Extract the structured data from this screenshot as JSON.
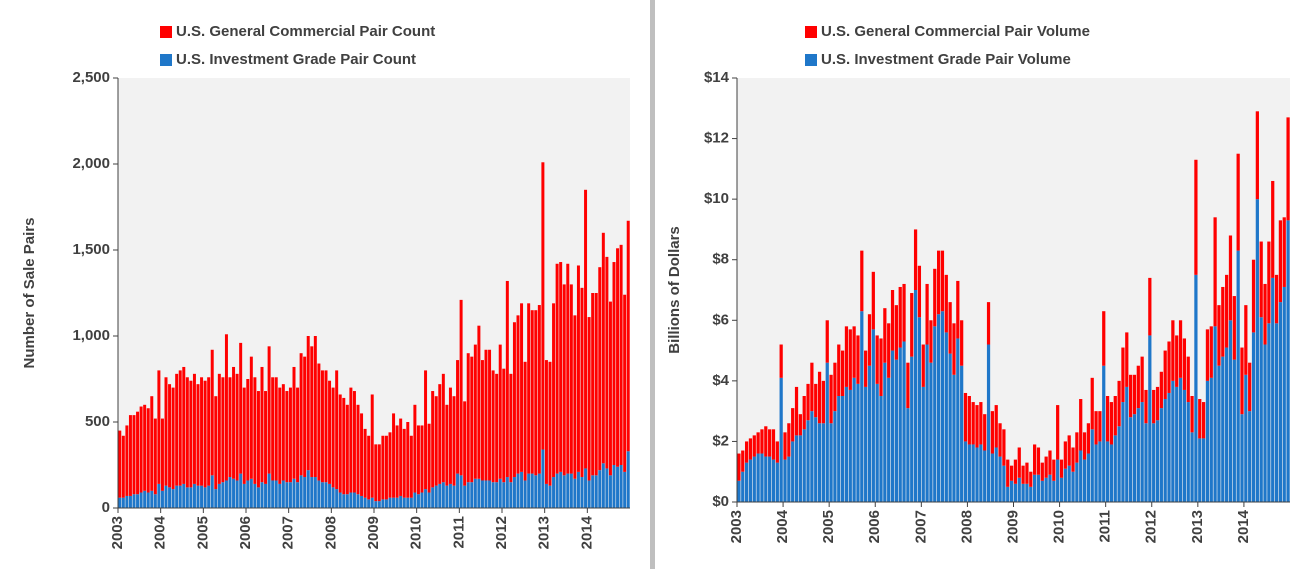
{
  "chart_data": [
    {
      "type": "bar",
      "stacked": true,
      "y_label": "Number of Sale Pairs",
      "categories": [
        "2003",
        null,
        null,
        null,
        null,
        null,
        null,
        null,
        null,
        null,
        null,
        null,
        "2004",
        null,
        null,
        null,
        null,
        null,
        null,
        null,
        null,
        null,
        null,
        null,
        "2005",
        null,
        null,
        null,
        null,
        null,
        null,
        null,
        null,
        null,
        null,
        null,
        "2006",
        null,
        null,
        null,
        null,
        null,
        null,
        null,
        null,
        null,
        null,
        null,
        "2007",
        null,
        null,
        null,
        null,
        null,
        null,
        null,
        null,
        null,
        null,
        null,
        "2008",
        null,
        null,
        null,
        null,
        null,
        null,
        null,
        null,
        null,
        null,
        null,
        "2009",
        null,
        null,
        null,
        null,
        null,
        null,
        null,
        null,
        null,
        null,
        null,
        "2010",
        null,
        null,
        null,
        null,
        null,
        null,
        null,
        null,
        null,
        null,
        null,
        "2011",
        null,
        null,
        null,
        null,
        null,
        null,
        null,
        null,
        null,
        null,
        null,
        "2012",
        null,
        null,
        null,
        null,
        null,
        null,
        null,
        null,
        null,
        null,
        null,
        "2013",
        null,
        null,
        null,
        null,
        null,
        null,
        null,
        null,
        null,
        null,
        null,
        "2014",
        null,
        null,
        null,
        null,
        null,
        null,
        null,
        null,
        null,
        null,
        null
      ],
      "series": [
        {
          "name": "U.S. General Commercial Pair Count",
          "color": "#ff0000",
          "values": [
            390,
            360,
            410,
            470,
            460,
            480,
            500,
            500,
            490,
            550,
            440,
            660,
            420,
            630,
            600,
            590,
            650,
            670,
            680,
            640,
            620,
            640,
            590,
            630,
            620,
            630,
            730,
            540,
            640,
            610,
            850,
            580,
            650,
            620,
            760,
            560,
            590,
            710,
            620,
            560,
            670,
            540,
            740,
            600,
            600,
            560,
            560,
            530,
            550,
            650,
            550,
            710,
            700,
            780,
            760,
            820,
            680,
            650,
            650,
            600,
            580,
            690,
            570,
            560,
            520,
            610,
            590,
            520,
            480,
            400,
            370,
            600,
            330,
            330,
            370,
            370,
            380,
            490,
            420,
            450,
            400,
            440,
            360,
            510,
            400,
            390,
            690,
            400,
            560,
            520,
            580,
            630,
            470,
            560,
            520,
            660,
            1020,
            490,
            750,
            730,
            780,
            890,
            700,
            760,
            760,
            650,
            630,
            780,
            660,
            1140,
            630,
            900,
            920,
            980,
            690,
            990,
            950,
            960,
            980,
            1670,
            720,
            720,
            1010,
            1220,
            1220,
            1110,
            1220,
            1100,
            950,
            1200,
            1100,
            1620,
            950,
            1060,
            1060,
            1180,
            1340,
            1230,
            1010,
            1180,
            1270,
            1280,
            1030,
            1340
          ]
        },
        {
          "name": "U.S. Investment Grade Pair Count",
          "color": "#1f77c9",
          "values": [
            60,
            60,
            70,
            70,
            80,
            80,
            90,
            100,
            90,
            100,
            80,
            140,
            100,
            130,
            120,
            110,
            130,
            130,
            140,
            120,
            120,
            140,
            130,
            130,
            120,
            130,
            190,
            110,
            140,
            150,
            160,
            180,
            170,
            160,
            200,
            140,
            160,
            170,
            140,
            120,
            150,
            140,
            200,
            160,
            160,
            140,
            160,
            150,
            150,
            170,
            150,
            190,
            180,
            220,
            180,
            180,
            160,
            150,
            150,
            140,
            120,
            110,
            90,
            80,
            80,
            90,
            90,
            80,
            70,
            60,
            50,
            60,
            40,
            40,
            50,
            50,
            60,
            60,
            60,
            70,
            60,
            60,
            60,
            90,
            80,
            90,
            110,
            90,
            120,
            130,
            140,
            150,
            130,
            140,
            130,
            200,
            190,
            130,
            150,
            150,
            170,
            170,
            160,
            160,
            160,
            150,
            150,
            170,
            150,
            180,
            150,
            180,
            200,
            210,
            160,
            200,
            200,
            190,
            200,
            340,
            140,
            130,
            180,
            200,
            210,
            190,
            200,
            200,
            170,
            210,
            180,
            230,
            160,
            190,
            190,
            220,
            260,
            230,
            190,
            250,
            240,
            250,
            210,
            330
          ]
        }
      ],
      "ylim": [
        0,
        2500
      ],
      "yticks": [
        0,
        500,
        {
          "value": 1000,
          "label": "1,000"
        },
        {
          "value": 1500,
          "label": "1,500"
        },
        {
          "value": 2000,
          "label": "2,000"
        },
        {
          "value": 2500,
          "label": "2,500"
        }
      ]
    },
    {
      "type": "bar",
      "stacked": true,
      "y_label": "Billions of Dollars",
      "categories": [
        "2003",
        null,
        null,
        null,
        null,
        null,
        null,
        null,
        null,
        null,
        null,
        null,
        "2004",
        null,
        null,
        null,
        null,
        null,
        null,
        null,
        null,
        null,
        null,
        null,
        "2005",
        null,
        null,
        null,
        null,
        null,
        null,
        null,
        null,
        null,
        null,
        null,
        "2006",
        null,
        null,
        null,
        null,
        null,
        null,
        null,
        null,
        null,
        null,
        null,
        "2007",
        null,
        null,
        null,
        null,
        null,
        null,
        null,
        null,
        null,
        null,
        null,
        "2008",
        null,
        null,
        null,
        null,
        null,
        null,
        null,
        null,
        null,
        null,
        null,
        "2009",
        null,
        null,
        null,
        null,
        null,
        null,
        null,
        null,
        null,
        null,
        null,
        "2010",
        null,
        null,
        null,
        null,
        null,
        null,
        null,
        null,
        null,
        null,
        null,
        "2011",
        null,
        null,
        null,
        null,
        null,
        null,
        null,
        null,
        null,
        null,
        null,
        "2012",
        null,
        null,
        null,
        null,
        null,
        null,
        null,
        null,
        null,
        null,
        null,
        "2013",
        null,
        null,
        null,
        null,
        null,
        null,
        null,
        null,
        null,
        null,
        null,
        "2014",
        null,
        null,
        null,
        null,
        null,
        null,
        null,
        null,
        null,
        null,
        null
      ],
      "series": [
        {
          "name": "U.S. General Commercial Pair Volume",
          "color": "#ff0000",
          "values": [
            0.9,
            0.7,
            0.7,
            0.7,
            0.7,
            0.7,
            0.8,
            1.0,
            0.9,
            1.0,
            0.7,
            1.1,
            0.9,
            1.1,
            1.1,
            1.6,
            0.7,
            1.1,
            1.2,
            1.6,
            1.1,
            1.7,
            1.4,
            1.4,
            1.6,
            1.6,
            1.7,
            1.5,
            2.0,
            2.0,
            1.7,
            1.6,
            2.0,
            1.2,
            1.7,
            1.9,
            1.6,
            1.9,
            1.8,
            1.8,
            2.0,
            1.8,
            2.0,
            1.9,
            1.5,
            2.1,
            2.0,
            1.7,
            1.4,
            2.0,
            1.4,
            1.9,
            2.1,
            2.0,
            1.9,
            1.7,
            1.7,
            1.9,
            1.5,
            1.6,
            1.6,
            1.4,
            1.4,
            1.4,
            1.2,
            1.4,
            1.4,
            1.4,
            1.1,
            1.2,
            0.9,
            0.5,
            0.8,
            1.0,
            0.6,
            0.7,
            0.5,
            1.0,
            0.9,
            0.6,
            0.7,
            0.8,
            0.7,
            1.8,
            0.6,
            0.9,
            1.0,
            0.8,
            1.0,
            1.7,
            0.9,
            1.0,
            1.7,
            1.1,
            1.0,
            1.8,
            1.5,
            1.4,
            1.3,
            1.5,
            1.8,
            1.8,
            1.4,
            1.3,
            1.4,
            1.5,
            1.1,
            1.9,
            1.1,
            1.1,
            1.2,
            1.6,
            1.7,
            2.0,
            1.7,
            1.9,
            1.7,
            1.5,
            1.2,
            3.8,
            1.3,
            1.2,
            1.7,
            1.7,
            3.6,
            2.0,
            2.3,
            2.4,
            2.8,
            2.1,
            3.2,
            2.2,
            2.3,
            1.6,
            2.4,
            2.9,
            2.5,
            2.0,
            2.7,
            3.2,
            1.6,
            2.7,
            2.3,
            3.4
          ]
        },
        {
          "name": "U.S. Investment Grade Pair Volume",
          "color": "#1f77c9",
          "values": [
            0.7,
            1.0,
            1.3,
            1.4,
            1.5,
            1.6,
            1.6,
            1.5,
            1.5,
            1.4,
            1.3,
            4.1,
            1.4,
            1.5,
            2.0,
            2.2,
            2.2,
            2.4,
            2.7,
            3.0,
            2.8,
            2.6,
            2.6,
            4.6,
            2.6,
            3.0,
            3.5,
            3.5,
            3.8,
            3.7,
            4.1,
            3.9,
            6.3,
            3.8,
            4.5,
            5.7,
            3.9,
            3.5,
            4.6,
            4.1,
            5.0,
            4.7,
            5.1,
            5.3,
            3.1,
            4.8,
            7.0,
            6.1,
            3.8,
            5.2,
            4.6,
            5.8,
            6.2,
            6.3,
            5.6,
            4.9,
            4.2,
            5.4,
            4.5,
            2.0,
            1.9,
            1.9,
            1.8,
            1.9,
            1.7,
            5.2,
            1.6,
            1.8,
            1.5,
            1.2,
            0.5,
            0.7,
            0.6,
            0.8,
            0.6,
            0.6,
            0.5,
            0.9,
            0.9,
            0.7,
            0.8,
            0.9,
            0.7,
            1.4,
            0.8,
            1.1,
            1.2,
            1.0,
            1.3,
            1.7,
            1.4,
            1.6,
            2.4,
            1.9,
            2.0,
            4.5,
            2.0,
            1.9,
            2.2,
            2.5,
            3.3,
            3.8,
            2.8,
            2.9,
            3.1,
            3.3,
            2.6,
            5.5,
            2.6,
            2.7,
            3.1,
            3.4,
            3.6,
            4.0,
            3.8,
            4.1,
            3.7,
            3.3,
            2.3,
            7.5,
            2.1,
            2.1,
            4.0,
            4.1,
            5.8,
            4.5,
            4.8,
            5.1,
            6.0,
            4.7,
            8.3,
            2.9,
            4.2,
            3.0,
            5.6,
            10.0,
            6.1,
            5.2,
            5.9,
            7.4,
            5.9,
            6.6,
            7.1,
            9.3
          ]
        }
      ],
      "ylim": [
        0,
        14
      ],
      "yticks": [
        {
          "value": 0,
          "label": "$0"
        },
        {
          "value": 2,
          "label": "$2"
        },
        {
          "value": 4,
          "label": "$4"
        },
        {
          "value": 6,
          "label": "$6"
        },
        {
          "value": 8,
          "label": "$8"
        },
        {
          "value": 10,
          "label": "$10"
        },
        {
          "value": 12,
          "label": "$12"
        },
        {
          "value": 14,
          "label": "$14"
        }
      ]
    }
  ]
}
